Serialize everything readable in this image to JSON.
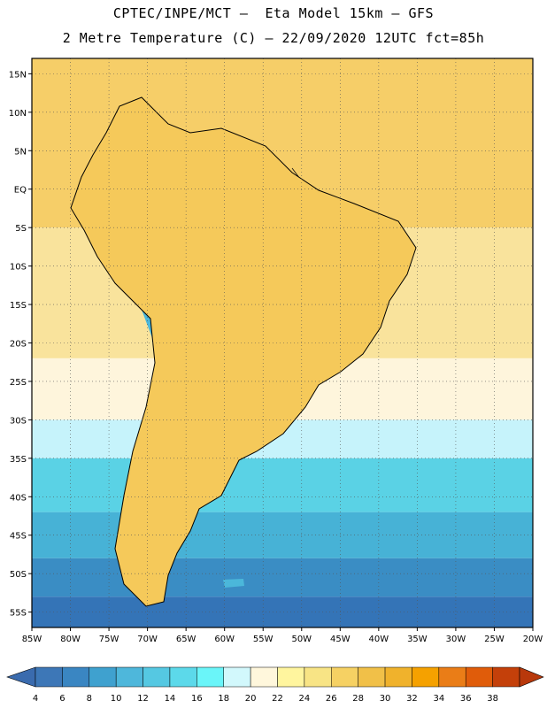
{
  "header": {
    "line1": "CPTEC/INPE/MCT –  Eta Model 15km – GFS",
    "line2": "2 Metre Temperature (C) – 22/09/2020 12UTC fct=85h"
  },
  "map": {
    "region": "South America",
    "lat_range": [
      -57,
      17
    ],
    "lon_range": [
      -85,
      -20
    ],
    "lat_ticks": [
      "15N",
      "10N",
      "5N",
      "EQ",
      "5S",
      "10S",
      "15S",
      "20S",
      "25S",
      "30S",
      "35S",
      "40S",
      "45S",
      "50S",
      "55S"
    ],
    "lon_ticks": [
      "85W",
      "80W",
      "75W",
      "70W",
      "65W",
      "60W",
      "55W",
      "50W",
      "45W",
      "40W",
      "35W",
      "30W",
      "25W",
      "20W"
    ],
    "land_palette": {
      "hot_core": "#E87B1C",
      "warm_interior": "#F1B43C",
      "mild_interior": "#F5C95A",
      "north_coast": "#F6D77A",
      "southern_cone_mid": "#F8E6A6",
      "andes_cold": "#66E3F1",
      "andes_colder": "#4BB7DA",
      "patagonia": "#3C8EC8"
    },
    "ocean_bands": [
      {
        "lat_from": 17,
        "lat_to": -5,
        "color": "#F6CE68"
      },
      {
        "lat_from": -5,
        "lat_to": -22,
        "color": "#F9E39C"
      },
      {
        "lat_from": -22,
        "lat_to": -30,
        "color": "#FEF5DC"
      },
      {
        "lat_from": -30,
        "lat_to": -35,
        "color": "#C6F3FB"
      },
      {
        "lat_from": -35,
        "lat_to": -42,
        "color": "#5AD2E5"
      },
      {
        "lat_from": -42,
        "lat_to": -48,
        "color": "#47B2D6"
      },
      {
        "lat_from": -48,
        "lat_to": -53,
        "color": "#3A8DC4"
      },
      {
        "lat_from": -53,
        "lat_to": -57,
        "color": "#3474B7"
      }
    ]
  },
  "colorbar": {
    "labels": [
      "4",
      "6",
      "8",
      "10",
      "12",
      "14",
      "16",
      "18",
      "20",
      "22",
      "24",
      "26",
      "28",
      "30",
      "32",
      "34",
      "36",
      "38"
    ],
    "colors": [
      "#3D77B7",
      "#3A86C2",
      "#3FA1CF",
      "#4EB7DB",
      "#55C8E2",
      "#5CD9EA",
      "#6AF5F9",
      "#D2F8FC",
      "#FFF7DC",
      "#FFF59E",
      "#F8E485",
      "#F6D163",
      "#F1C048",
      "#F0B22C",
      "#F5A100",
      "#EA7D17",
      "#E05C0A",
      "#C4400A"
    ],
    "low_color": "#3A6BAE",
    "high_color": "#B8380B"
  }
}
